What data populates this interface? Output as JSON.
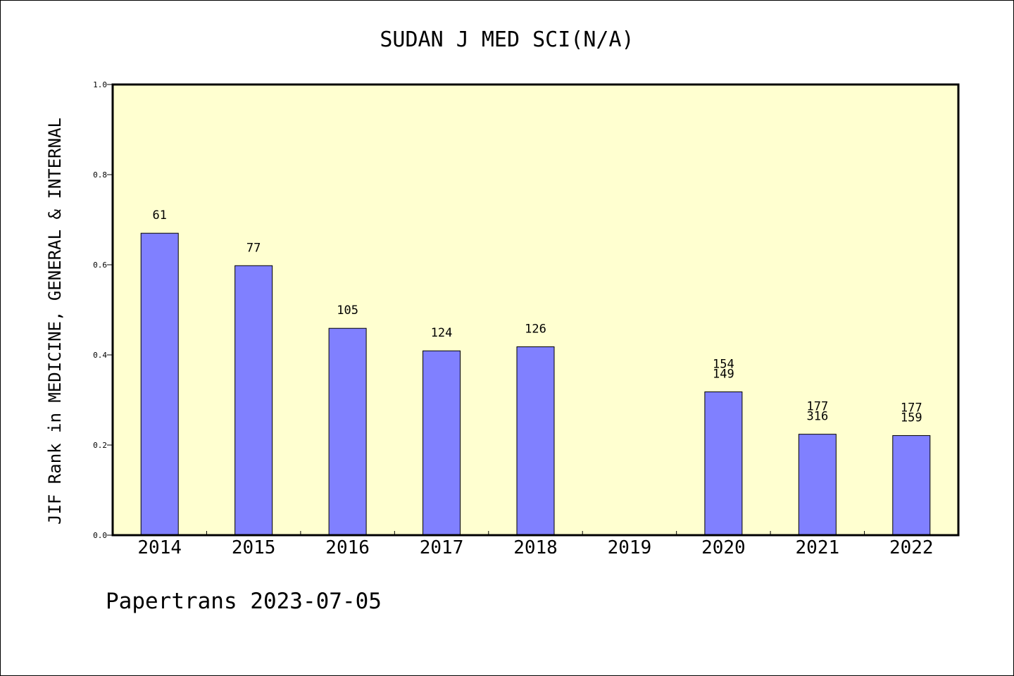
{
  "chart_data": {
    "type": "bar",
    "title": "SUDAN J MED SCI(N/A)",
    "ylabel": "JIF Rank in MEDICINE, GENERAL & INTERNAL",
    "xlabel": "",
    "ylim": [
      0,
      1.0
    ],
    "yticks": [
      "0.0",
      "0.2",
      "0.4",
      "0.6",
      "0.8",
      "1.0"
    ],
    "categories": [
      "2014",
      "2015",
      "2016",
      "2017",
      "2018",
      "2019",
      "2020",
      "2021",
      "2022"
    ],
    "values": [
      0.67,
      0.598,
      0.459,
      0.409,
      0.418,
      null,
      0.318,
      0.224,
      0.221
    ],
    "labels": [
      [
        "61"
      ],
      [
        "77"
      ],
      [
        "105"
      ],
      [
        "124"
      ],
      [
        "126"
      ],
      [],
      [
        "154",
        "149"
      ],
      [
        "177",
        "316"
      ],
      [
        "177",
        "159"
      ]
    ],
    "bar_color": "#8080ff",
    "plot_background": "#ffffd0",
    "grid": false,
    "legend": "none"
  },
  "footer": {
    "text": "Papertrans 2023-07-05"
  }
}
